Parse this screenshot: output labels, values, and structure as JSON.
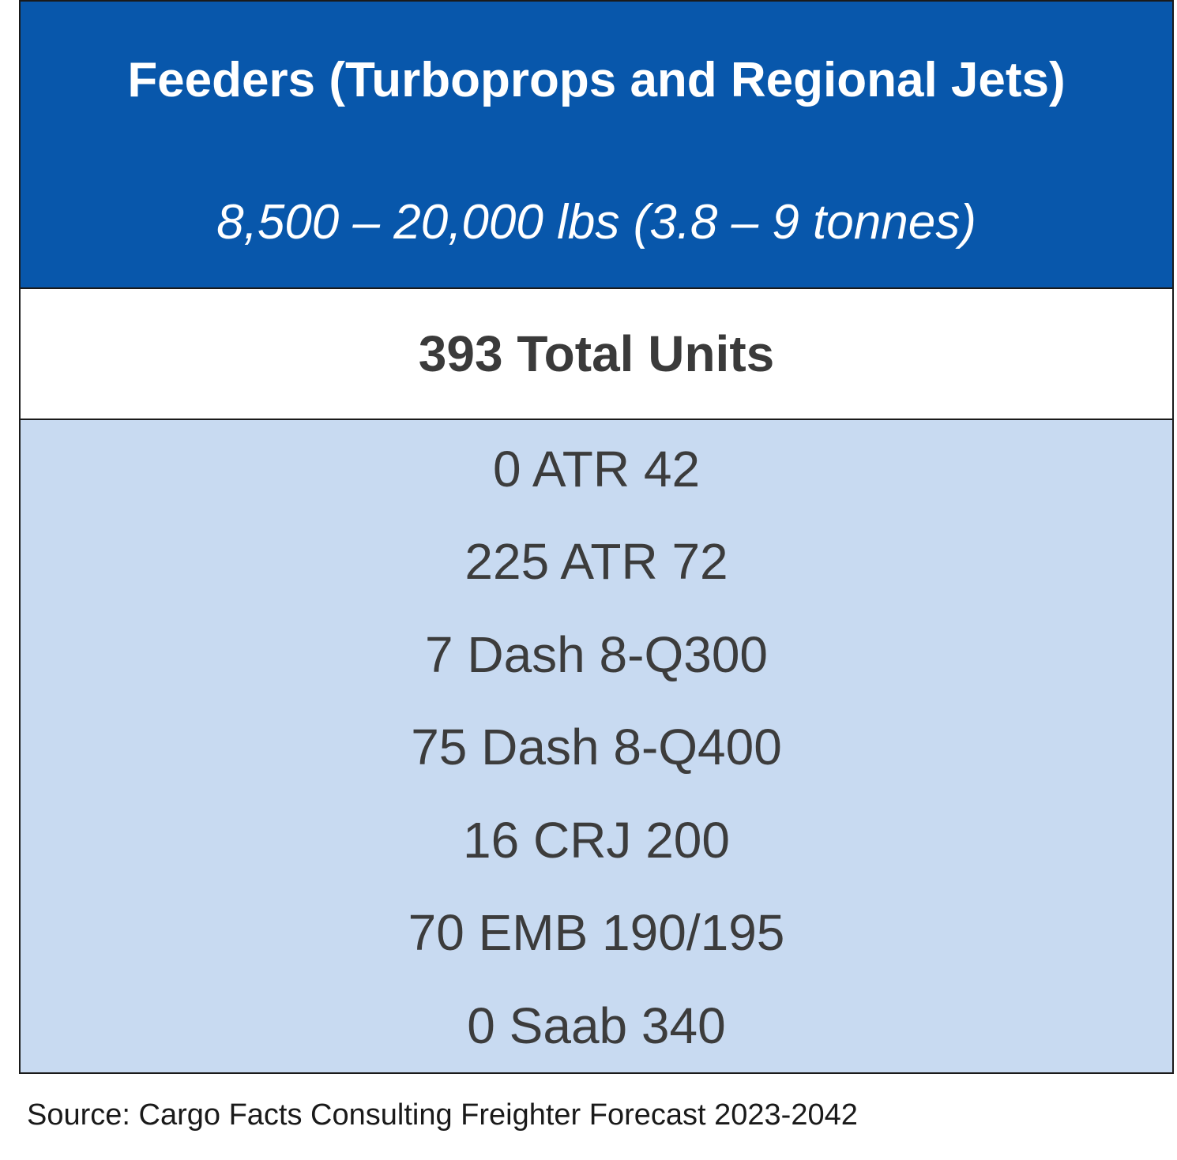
{
  "chart_data": {
    "type": "table",
    "title": "Feeders (Turboprops and Regional Jets)",
    "subtitle": "8,500 – 20,000 lbs (3.8 – 9 tonnes)",
    "total": {
      "value": 393,
      "label": "393 Total Units"
    },
    "rows": [
      {
        "count": 0,
        "model": "ATR 42",
        "label": "0 ATR 42"
      },
      {
        "count": 225,
        "model": "ATR 72",
        "label": "225 ATR 72"
      },
      {
        "count": 7,
        "model": "Dash 8-Q300",
        "label": "7 Dash 8-Q300"
      },
      {
        "count": 75,
        "model": "Dash 8-Q400",
        "label": "75 Dash 8-Q400"
      },
      {
        "count": 16,
        "model": "CRJ 200",
        "label": "16 CRJ 200"
      },
      {
        "count": 70,
        "model": "EMB 190/195",
        "label": "70 EMB 190/195"
      },
      {
        "count": 0,
        "model": "Saab 340",
        "label": "0 Saab 340"
      }
    ],
    "source": "Source: Cargo Facts Consulting Freighter Forecast 2023-2042"
  },
  "colors": {
    "header_bg": "#0857ab",
    "header_text": "#ffffff",
    "items_bg": "#c8daf1",
    "body_text": "#3c3c3c"
  }
}
